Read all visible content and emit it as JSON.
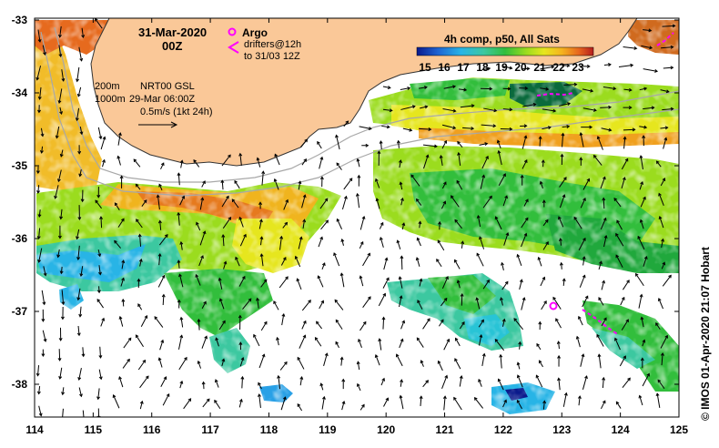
{
  "map": {
    "date": "31-Mar-2020",
    "time": "00Z",
    "argo_label": "Argo",
    "drifters_line1": "drifters@12h",
    "drifters_line2": "to 31/03 12Z",
    "colorbar_title": "4h comp, p50, All Sats",
    "colorbar_ticks": [
      "15",
      "16",
      "17",
      "18",
      "19",
      "20",
      "21",
      "22",
      "23"
    ],
    "contour_label_1": "200m",
    "contour_label_2": "1000m",
    "currents_source": "NRT00 GSL",
    "currents_date": "29-Mar 06:00Z",
    "scale_label": "0.5m/s (1kt 24h)",
    "x_ticks": [
      "114",
      "115",
      "116",
      "117",
      "118",
      "119",
      "120",
      "121",
      "122",
      "123",
      "124",
      "125"
    ],
    "y_ticks": [
      "-33",
      "-34",
      "-35",
      "-36",
      "-37",
      "-38"
    ],
    "credit": "© IMOS 01-Apr-2020 21:07 Hobart",
    "colors": {
      "land": "#FAC898",
      "argo": "#FF00FF",
      "sst_scale": [
        "#0a1a8c",
        "#1e64d2",
        "#28b4e6",
        "#3cc8a0",
        "#32be3c",
        "#9bdc1e",
        "#e6e61e",
        "#f5b41e",
        "#e6641e",
        "#b41e1e"
      ]
    }
  }
}
